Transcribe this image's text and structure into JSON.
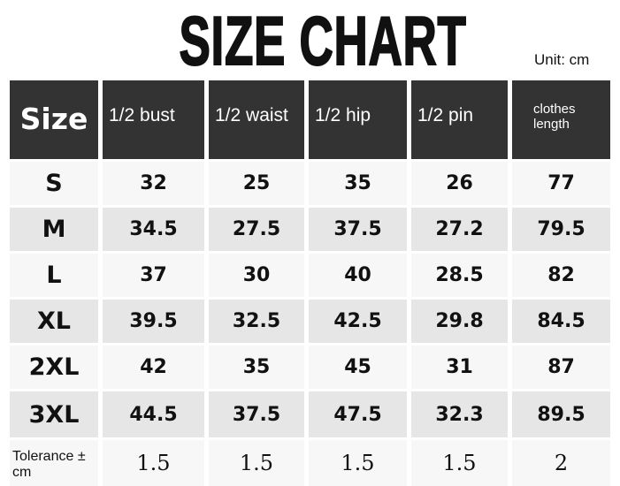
{
  "title": "SIZE CHART",
  "unit": "Unit: cm",
  "headers": [
    "Size",
    "1/2 bust",
    "1/2 waist",
    "1/2 hip",
    "1/2 pin",
    "clothes length"
  ],
  "rows": [
    [
      "S",
      "32",
      "25",
      "35",
      "26",
      "77"
    ],
    [
      "M",
      "34.5",
      "27.5",
      "37.5",
      "27.2",
      "79.5"
    ],
    [
      "L",
      "37",
      "30",
      "40",
      "28.5",
      "82"
    ],
    [
      "XL",
      "39.5",
      "32.5",
      "42.5",
      "29.8",
      "84.5"
    ],
    [
      "2XL",
      "42",
      "35",
      "45",
      "31",
      "87"
    ],
    [
      "3XL",
      "44.5",
      "37.5",
      "47.5",
      "32.3",
      "89.5"
    ]
  ],
  "tolerance": [
    "Tolerance ± cm",
    "1.5",
    "1.5",
    "1.5",
    "1.5",
    "2"
  ],
  "colors": {
    "header_bg": "#333333",
    "row_light": "#f7f7f7",
    "row_dark": "#e6e6e6"
  }
}
